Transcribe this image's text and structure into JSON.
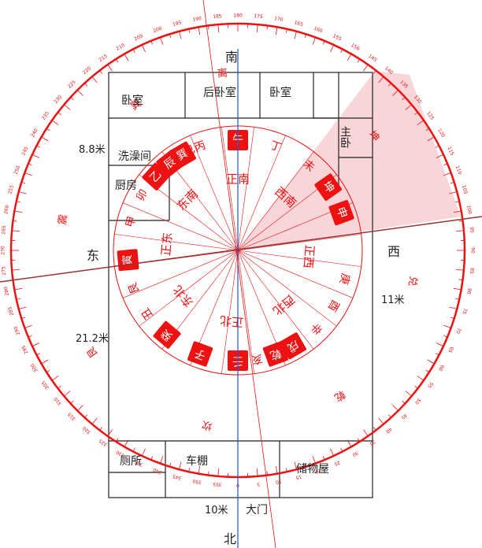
{
  "directions": {
    "south": "南",
    "north": "北",
    "east": "东",
    "west": "西"
  },
  "rooms": {
    "bedroom_top_left": "卧室",
    "bedroom_back": "后卧室",
    "bedroom_mid": "卧室",
    "master_bedroom": "主卧",
    "bathroom": "洗澡间",
    "kitchen": "厨房",
    "toilet": "厕所",
    "car_shed": "车棚",
    "storage": "储物屋",
    "main_door": "大门",
    "left_8m": "8.8米",
    "left_21m": "21.2米",
    "right_11m": "11米",
    "bottom_10m": "10米"
  },
  "ring_labels": [
    {
      "text": "丙",
      "angle": 250,
      "highlight": false
    },
    {
      "text": "午",
      "angle": 270,
      "highlight": true
    },
    {
      "text": "丁",
      "angle": 290,
      "highlight": false
    },
    {
      "text": "未",
      "angle": 310,
      "highlight": false
    },
    {
      "text": "坤",
      "angle": 325,
      "highlight": true
    },
    {
      "text": "申",
      "angle": 340,
      "highlight": true
    },
    {
      "text": "庚",
      "angle": 15,
      "highlight": false
    },
    {
      "text": "酉",
      "angle": 30,
      "highlight": false
    },
    {
      "text": "辛",
      "angle": 45,
      "highlight": false
    },
    {
      "text": "戌",
      "angle": 60,
      "highlight": true
    },
    {
      "text": "乾",
      "angle": 70,
      "highlight": true
    },
    {
      "text": "亥",
      "angle": 80,
      "highlight": false
    },
    {
      "text": "壬",
      "angle": 90,
      "highlight": true
    },
    {
      "text": "子",
      "angle": 110,
      "highlight": true
    },
    {
      "text": "癸",
      "angle": 130,
      "highlight": true
    },
    {
      "text": "丑",
      "angle": 145,
      "highlight": false
    },
    {
      "text": "艮",
      "angle": 160,
      "highlight": false
    },
    {
      "text": "寅",
      "angle": 175,
      "highlight": true
    },
    {
      "text": "甲",
      "angle": 195,
      "highlight": false
    },
    {
      "text": "卯",
      "angle": 210,
      "highlight": false
    },
    {
      "text": "乙",
      "angle": 222,
      "highlight": true
    },
    {
      "text": "辰",
      "angle": 232,
      "highlight": true
    },
    {
      "text": "巽",
      "angle": 240,
      "highlight": true
    },
    {
      "text": "巳",
      "angle": 244,
      "highlight": false
    }
  ],
  "inner_labels": [
    {
      "text": "正南",
      "angle": 270
    },
    {
      "text": "西南",
      "angle": 312
    },
    {
      "text": "正西",
      "angle": 5
    },
    {
      "text": "西北",
      "angle": 50
    },
    {
      "text": "正北",
      "angle": 95
    },
    {
      "text": "东北",
      "angle": 140
    },
    {
      "text": "正东",
      "angle": 185
    },
    {
      "text": "东南",
      "angle": 225
    }
  ],
  "outer_labels": [
    {
      "text": "离",
      "angle": 265
    },
    {
      "text": "坤",
      "angle": 320
    },
    {
      "text": "兑",
      "angle": 10
    },
    {
      "text": "乾",
      "angle": 55
    },
    {
      "text": "坎",
      "angle": 100
    },
    {
      "text": "艮",
      "angle": 145
    },
    {
      "text": "震",
      "angle": 190
    },
    {
      "text": "巽",
      "angle": 235
    }
  ],
  "colors": {
    "compass": "#ee1111",
    "highlight_sector": "#f6c7cc",
    "axis_blue": "#2255cc",
    "axis_dark": "#993333",
    "wall": "#222222"
  }
}
